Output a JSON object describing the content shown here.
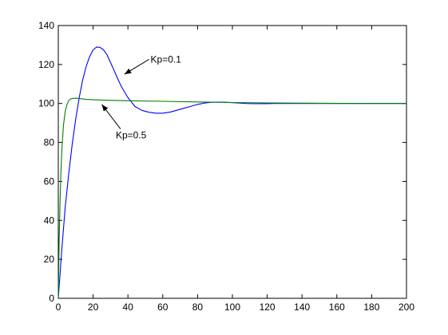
{
  "chart_data": {
    "type": "line",
    "title": "",
    "xlabel": "",
    "ylabel": "",
    "xlim": [
      0,
      200
    ],
    "ylim": [
      0,
      140
    ],
    "xticks": [
      0,
      20,
      40,
      60,
      80,
      100,
      120,
      140,
      160,
      180,
      200
    ],
    "yticks": [
      0,
      20,
      40,
      60,
      80,
      100,
      120,
      140
    ],
    "xtick_labels": [
      "0",
      "20",
      "40",
      "60",
      "80",
      "100",
      "120",
      "140",
      "160",
      "180",
      "200"
    ],
    "ytick_labels": [
      "0",
      "20",
      "40",
      "60",
      "80",
      "100",
      "120",
      "140"
    ],
    "grid": false,
    "legend": false,
    "series": [
      {
        "color": "#0000ff",
        "x": [
          0,
          2,
          4,
          6,
          8,
          10,
          12,
          14,
          16,
          18,
          20,
          22,
          24,
          26,
          28,
          30,
          32,
          34,
          36,
          38,
          40,
          44,
          48,
          52,
          56,
          60,
          64,
          68,
          72,
          76,
          80,
          84,
          88,
          92,
          96,
          100,
          104,
          108,
          112,
          116,
          120,
          124,
          128,
          132,
          136,
          140,
          150,
          160,
          170,
          180,
          190,
          200
        ],
        "y": [
          0,
          25,
          47,
          64,
          79,
          92,
          103,
          112,
          119,
          124,
          127.5,
          129,
          128.8,
          127.5,
          125,
          121,
          117,
          113,
          109,
          106,
          103,
          98.5,
          96.5,
          95.5,
          95,
          95,
          95.5,
          96.5,
          97.5,
          98.5,
          99.5,
          100.2,
          100.6,
          100.7,
          100.6,
          100.4,
          100.2,
          100,
          99.9,
          99.9,
          99.9,
          100,
          100,
          100,
          100,
          100,
          100,
          100,
          100,
          100,
          100,
          100
        ]
      },
      {
        "color": "#008000",
        "x": [
          0,
          0.5,
          1,
          1.5,
          2,
          3,
          4,
          5,
          6,
          7,
          8,
          10,
          12,
          14,
          16,
          20,
          30,
          40,
          60,
          80,
          100,
          120,
          140,
          160,
          180,
          200
        ],
        "y": [
          0,
          30,
          50,
          65,
          76,
          89,
          96,
          99.5,
          101.5,
          102.3,
          102.6,
          102.7,
          102.5,
          102.3,
          102.1,
          101.9,
          101.6,
          101.4,
          101.1,
          100.8,
          100.5,
          100.3,
          100.15,
          100.05,
          100,
          100
        ]
      }
    ],
    "annotations": [
      {
        "text": "Kp=0.1",
        "text_x": 53,
        "text_y": 121,
        "arrow_to_x": 38,
        "arrow_to_y": 115
      },
      {
        "text": "Kp=0.5",
        "text_x": 33,
        "text_y": 82,
        "arrow_to_x": 25,
        "arrow_to_y": 99.5
      }
    ]
  }
}
